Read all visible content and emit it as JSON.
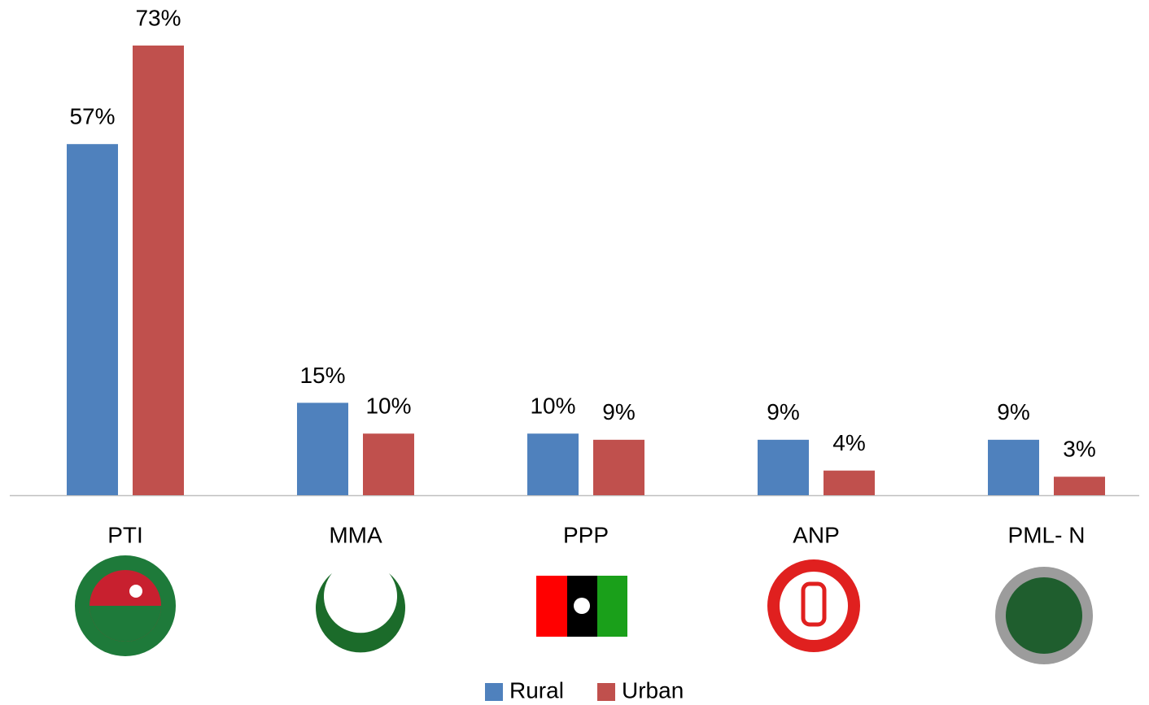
{
  "chart_data": {
    "type": "bar",
    "categories": [
      "PTI",
      "MMA",
      "PPP",
      "ANP",
      "PML- N"
    ],
    "series": [
      {
        "name": "Rural",
        "color": "#4f81bd",
        "values": [
          57,
          15,
          10,
          9,
          9
        ],
        "value_labels": [
          "57%",
          "15%",
          "10%",
          "9%",
          "9%"
        ]
      },
      {
        "name": "Urban",
        "color": "#c0504d",
        "values": [
          73,
          10,
          9,
          4,
          3
        ],
        "value_labels": [
          "73%",
          "10%",
          "9%",
          "4%",
          "3%"
        ]
      }
    ],
    "ylim": [
      0,
      73
    ],
    "legend": "bottom"
  }
}
